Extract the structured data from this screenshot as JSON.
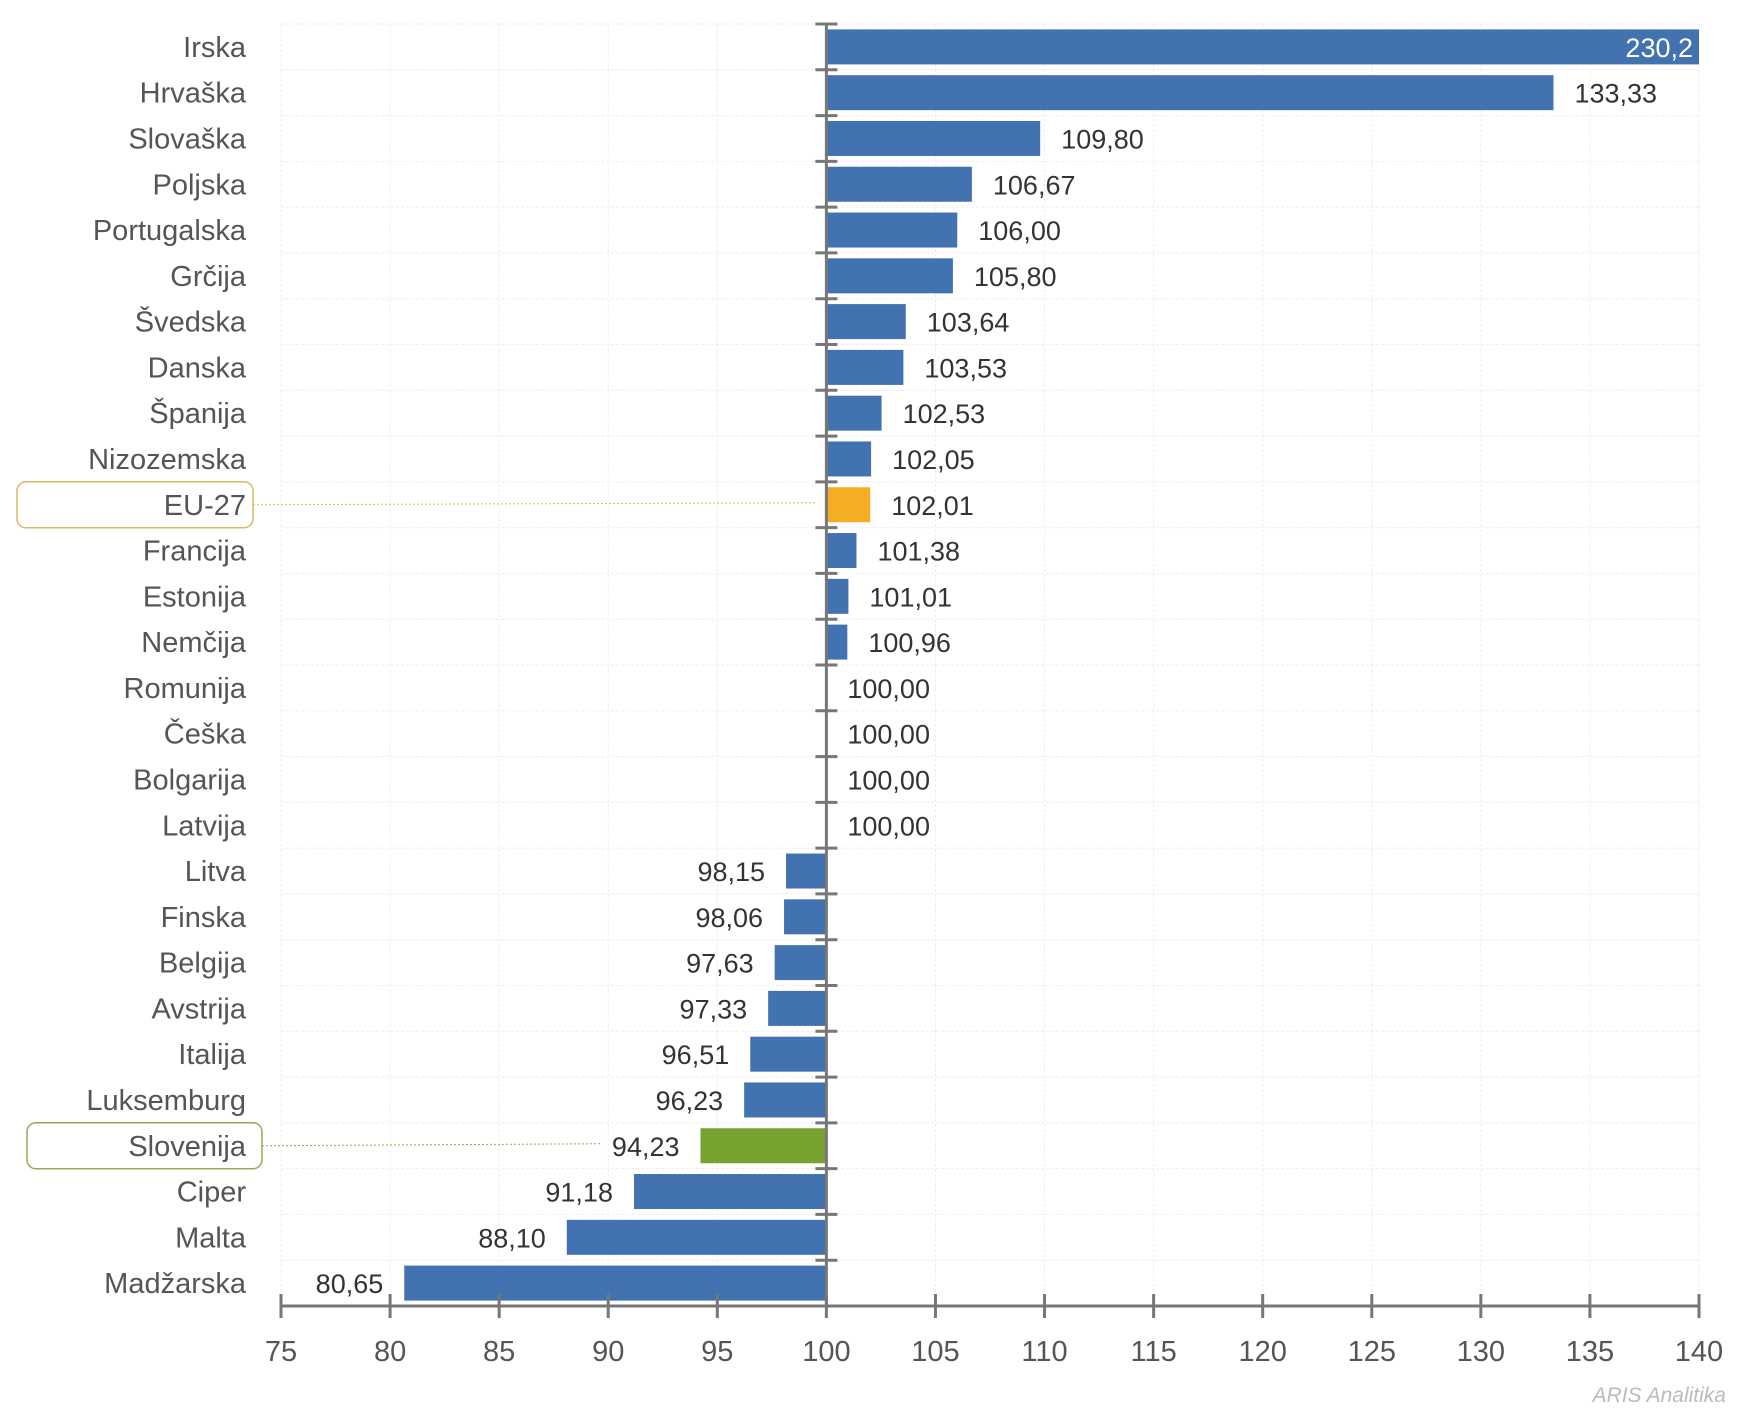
{
  "chart_data": {
    "type": "bar",
    "orientation": "horizontal",
    "baseline": 100,
    "categories": [
      "Irska",
      "Hrvaška",
      "Slovaška",
      "Poljska",
      "Portugalska",
      "Grčija",
      "Švedska",
      "Danska",
      "Španija",
      "Nizozemska",
      "EU-27",
      "Francija",
      "Estonija",
      "Nemčija",
      "Romunija",
      "Češka",
      "Bolgarija",
      "Latvija",
      "Litva",
      "Finska",
      "Belgija",
      "Avstrija",
      "Italija",
      "Luksemburg",
      "Slovenija",
      "Ciper",
      "Malta",
      "Madžarska"
    ],
    "values": [
      230.2,
      133.33,
      109.8,
      106.67,
      106.0,
      105.8,
      103.64,
      103.53,
      102.53,
      102.05,
      102.01,
      101.38,
      101.01,
      100.96,
      100.0,
      100.0,
      100.0,
      100.0,
      98.15,
      98.06,
      97.63,
      97.33,
      96.51,
      96.23,
      94.23,
      91.18,
      88.1,
      80.65
    ],
    "data_labels": [
      "230,2",
      "133,33",
      "109,80",
      "106,67",
      "106,00",
      "105,80",
      "103,64",
      "103,53",
      "102,53",
      "102,05",
      "102,01",
      "101,38",
      "101,01",
      "100,96",
      "100,00",
      "100,00",
      "100,00",
      "100,00",
      "98,15",
      "98,06",
      "97,63",
      "97,33",
      "96,51",
      "96,23",
      "94,23",
      "91,18",
      "88,10",
      "80,65"
    ],
    "highlighted": {
      "EU-27": "#F5AD23",
      "Slovenija": "#77A22F"
    },
    "bar_color": "#4372B0",
    "xlim": [
      75,
      140
    ],
    "x_ticks": [
      "75",
      "80",
      "85",
      "90",
      "95",
      "100",
      "105",
      "110",
      "115",
      "120",
      "125",
      "130",
      "135",
      "140"
    ],
    "grid": true,
    "title": "",
    "xlabel": "",
    "ylabel": ""
  },
  "credit": "ARIS Analitika"
}
